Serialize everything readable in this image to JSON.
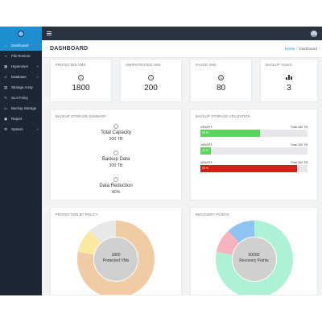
{
  "sidebar": {
    "items": [
      {
        "label": "Dashboard",
        "icon": "home-icon",
        "glyph": "⌂",
        "caret": ""
      },
      {
        "label": "File Restore",
        "icon": "folder-icon",
        "glyph": "▪",
        "caret": ""
      },
      {
        "label": "Hypervisor",
        "icon": "server-icon",
        "glyph": "▦",
        "caret": "˅"
      },
      {
        "label": "Database",
        "icon": "database-icon",
        "glyph": "≡",
        "caret": "˅"
      },
      {
        "label": "Storage Array",
        "icon": "storage-icon",
        "glyph": "▤",
        "caret": ""
      },
      {
        "label": "SLA Policy",
        "icon": "policy-icon",
        "glyph": "✎",
        "caret": ""
      },
      {
        "label": "Backup Storage",
        "icon": "backup-storage-icon",
        "glyph": "▭",
        "caret": ""
      },
      {
        "label": "Report",
        "icon": "report-icon",
        "glyph": "▣",
        "caret": ""
      },
      {
        "label": "System",
        "icon": "settings-icon",
        "glyph": "⚙",
        "caret": "˅"
      }
    ]
  },
  "header": {
    "title": "DASHBOARD",
    "breadcrumb": {
      "home": "Home",
      "separator": "/",
      "current": "Dashboard"
    }
  },
  "stats": [
    {
      "title": "PROTECTED VMS",
      "value": "1800",
      "icon": "smile-icon",
      "glyph": "☺"
    },
    {
      "title": "UNPROTECTED VMS",
      "value": "200",
      "icon": "info-icon",
      "glyph": "i"
    },
    {
      "title": "FAILED VMS",
      "value": "80",
      "icon": "sad-icon",
      "glyph": "☹"
    },
    {
      "title": "BACKUP TASKS",
      "value": "3",
      "icon": "bar-chart-icon",
      "glyph": ""
    }
  ],
  "summary": {
    "title": "BACKUP STORAGE SUMMARY",
    "items": [
      {
        "label": "Total Capacity",
        "value": "200 TB",
        "icon": "capacity-icon"
      },
      {
        "label": "Backup Data",
        "value": "300 TB",
        "icon": "backup-data-icon"
      },
      {
        "label": "Data Reduction",
        "value": "40%",
        "icon": "reduction-icon"
      }
    ]
  },
  "utilization": {
    "title": "BACKUP STORAGE UTILIZATION",
    "rows": [
      {
        "name": "vSNAP1",
        "total": "Total 160 TB",
        "percent": 56,
        "percent_label": "56 %",
        "color": "#5fd35f"
      },
      {
        "name": "vSNAP2",
        "total": "Total 160 TB",
        "percent": 10,
        "percent_label": "10 %",
        "color": "#5fd35f"
      },
      {
        "name": "vSNAP3",
        "total": "Total 160 TB",
        "percent": 90,
        "percent_label": "90 %",
        "color": "#e01919"
      }
    ]
  },
  "policy": {
    "title": "PROTECTION BY POLICY",
    "center_value": "1800",
    "center_label": "Protected VMs",
    "segments": [
      {
        "value": 78,
        "color": "#f1cba3"
      },
      {
        "value": 10,
        "color": "#fbe9a0"
      },
      {
        "value": 12,
        "color": "#e8e8e8"
      }
    ]
  },
  "recovery": {
    "title": "RECOVERY POINTS",
    "center_value": "50000",
    "center_label": "Recovery Points",
    "segments": [
      {
        "value": 78,
        "color": "#aef2d6"
      },
      {
        "value": 10,
        "color": "#f7b4bf"
      },
      {
        "value": 12,
        "color": "#8fc3f2"
      }
    ]
  }
}
